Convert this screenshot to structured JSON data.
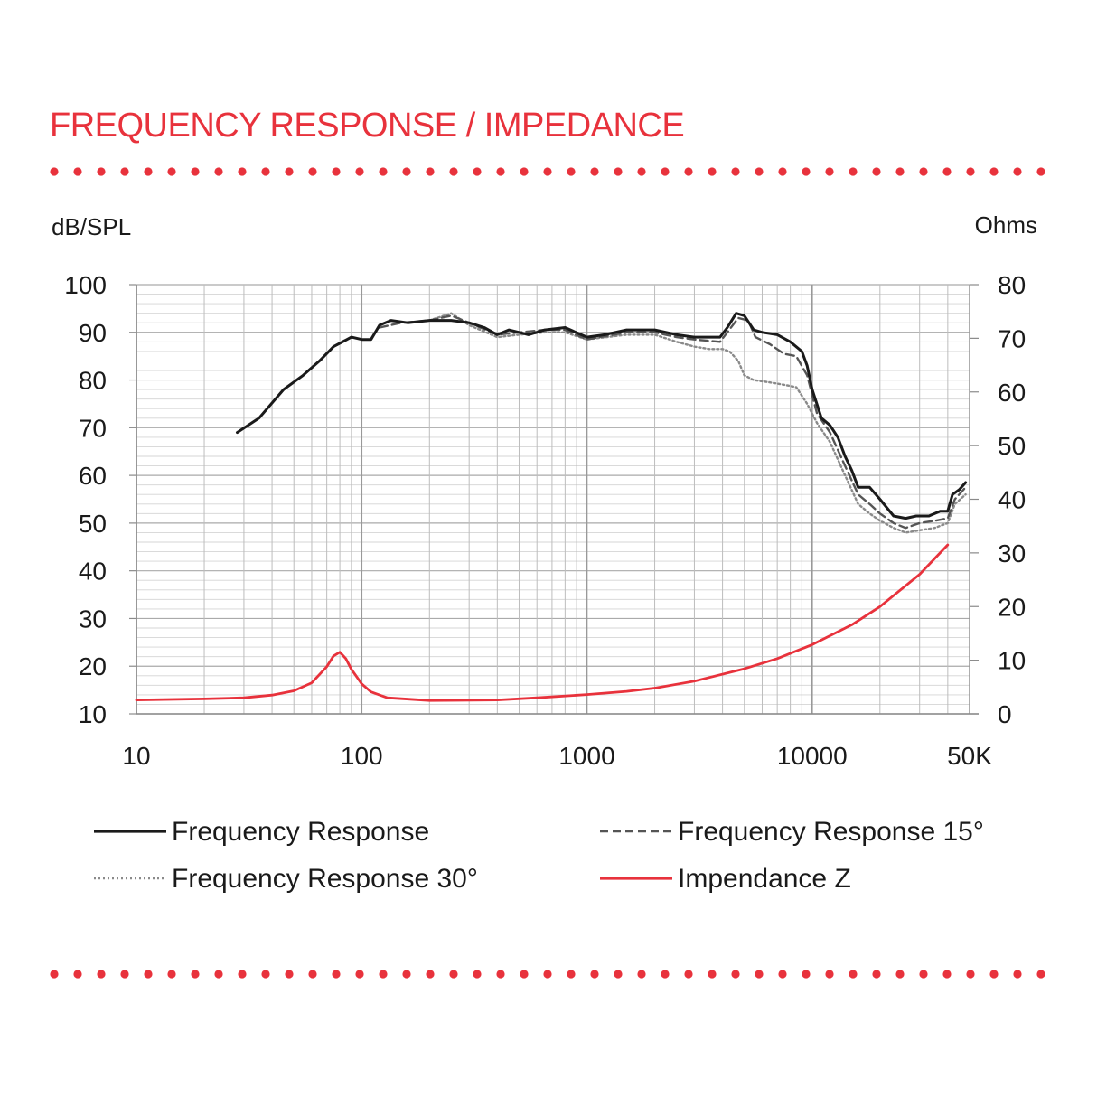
{
  "page": {
    "title": "FREQUENCY RESPONSE / IMPEDANCE"
  },
  "colors": {
    "accent": "#e8323c",
    "curve": "#1a1a1a",
    "grid": "#bdbdbd"
  },
  "chart_data": {
    "type": "line",
    "title": "",
    "xlabel": "",
    "ylabel": "dB/SPL",
    "y2label": "Ohms",
    "x_scale": "log",
    "xlim": [
      10,
      50000
    ],
    "ylim": [
      10,
      100
    ],
    "y2lim": [
      0,
      80
    ],
    "x_ticks": [
      10,
      100,
      1000,
      10000,
      50000
    ],
    "x_tick_labels": [
      "10",
      "100",
      "1000",
      "10000",
      "50K"
    ],
    "y_ticks": [
      100,
      90,
      80,
      70,
      60,
      50,
      40,
      30,
      20,
      10
    ],
    "y2_ticks": [
      80,
      70,
      60,
      50,
      40,
      30,
      20,
      10,
      0
    ],
    "grid": true,
    "legend": {
      "position": "bottom"
    },
    "series": [
      {
        "name": "Frequency Response",
        "axis": "left",
        "style": "solid",
        "color": "#1a1a1a",
        "points": [
          [
            28,
            69
          ],
          [
            35,
            72
          ],
          [
            45,
            78
          ],
          [
            55,
            81
          ],
          [
            65,
            84
          ],
          [
            75,
            87
          ],
          [
            90,
            89
          ],
          [
            100,
            88.5
          ],
          [
            110,
            88.5
          ],
          [
            120,
            91.5
          ],
          [
            135,
            92.5
          ],
          [
            160,
            92
          ],
          [
            200,
            92.5
          ],
          [
            250,
            92.5
          ],
          [
            300,
            92
          ],
          [
            350,
            91
          ],
          [
            400,
            89.5
          ],
          [
            450,
            90.5
          ],
          [
            500,
            90
          ],
          [
            550,
            89.5
          ],
          [
            650,
            90.5
          ],
          [
            800,
            91
          ],
          [
            1000,
            89
          ],
          [
            1200,
            89.5
          ],
          [
            1500,
            90.5
          ],
          [
            2000,
            90.5
          ],
          [
            2500,
            89.5
          ],
          [
            3000,
            89
          ],
          [
            3500,
            89
          ],
          [
            3900,
            89
          ],
          [
            4200,
            91
          ],
          [
            4600,
            94
          ],
          [
            5000,
            93.5
          ],
          [
            5500,
            90.5
          ],
          [
            6000,
            90
          ],
          [
            7000,
            89.5
          ],
          [
            8000,
            88
          ],
          [
            9000,
            86
          ],
          [
            9500,
            83
          ],
          [
            10000,
            78
          ],
          [
            11000,
            72
          ],
          [
            12000,
            70.5
          ],
          [
            13000,
            68
          ],
          [
            14000,
            64
          ],
          [
            15000,
            61
          ],
          [
            16000,
            57.5
          ],
          [
            18000,
            57.5
          ],
          [
            20000,
            55
          ],
          [
            23000,
            51.5
          ],
          [
            26000,
            51
          ],
          [
            29000,
            51.5
          ],
          [
            33000,
            51.5
          ],
          [
            37000,
            52.5
          ],
          [
            40000,
            52.5
          ],
          [
            42000,
            56
          ],
          [
            45000,
            57
          ],
          [
            48000,
            58.5
          ]
        ]
      },
      {
        "name": "Frequency Response 15°",
        "axis": "left",
        "style": "dashed",
        "color": "#555555",
        "points": [
          [
            120,
            91
          ],
          [
            150,
            92
          ],
          [
            200,
            92.5
          ],
          [
            250,
            93.5
          ],
          [
            300,
            92
          ],
          [
            400,
            89.5
          ],
          [
            500,
            90
          ],
          [
            650,
            90.5
          ],
          [
            800,
            90.5
          ],
          [
            1000,
            88.5
          ],
          [
            1500,
            90
          ],
          [
            2000,
            90
          ],
          [
            2500,
            89
          ],
          [
            3000,
            88.5
          ],
          [
            3900,
            88
          ],
          [
            4200,
            90
          ],
          [
            4700,
            93
          ],
          [
            5200,
            92.5
          ],
          [
            5600,
            89
          ],
          [
            6500,
            87.5
          ],
          [
            7500,
            85.5
          ],
          [
            8500,
            85
          ],
          [
            9500,
            81
          ],
          [
            10500,
            73
          ],
          [
            12000,
            69
          ],
          [
            14000,
            62
          ],
          [
            16000,
            56
          ],
          [
            18000,
            54
          ],
          [
            20000,
            52
          ],
          [
            23000,
            50
          ],
          [
            26000,
            49
          ],
          [
            30000,
            50
          ],
          [
            35000,
            50.5
          ],
          [
            40000,
            51
          ],
          [
            43000,
            55
          ],
          [
            48000,
            57.5
          ]
        ]
      },
      {
        "name": "Frequency Response 30°",
        "axis": "left",
        "style": "dotted",
        "color": "#8a8a8a",
        "points": [
          [
            200,
            92.5
          ],
          [
            250,
            94
          ],
          [
            300,
            91.5
          ],
          [
            400,
            89
          ],
          [
            500,
            89.5
          ],
          [
            650,
            90
          ],
          [
            800,
            90
          ],
          [
            1000,
            88.5
          ],
          [
            1500,
            89.5
          ],
          [
            2000,
            89.5
          ],
          [
            2500,
            88
          ],
          [
            3000,
            87
          ],
          [
            3500,
            86.5
          ],
          [
            4000,
            86.5
          ],
          [
            4300,
            86
          ],
          [
            4700,
            84
          ],
          [
            5000,
            81
          ],
          [
            5500,
            80
          ],
          [
            6500,
            79.5
          ],
          [
            7500,
            79
          ],
          [
            8500,
            78.5
          ],
          [
            9500,
            75
          ],
          [
            10500,
            71
          ],
          [
            12000,
            67
          ],
          [
            14000,
            60
          ],
          [
            16000,
            54
          ],
          [
            18000,
            52
          ],
          [
            20000,
            50.5
          ],
          [
            23000,
            49
          ],
          [
            26000,
            48
          ],
          [
            30000,
            48.5
          ],
          [
            35000,
            49
          ],
          [
            40000,
            50
          ],
          [
            43000,
            54
          ],
          [
            48000,
            56
          ]
        ]
      },
      {
        "name": "Impendance Z",
        "axis": "right",
        "style": "solid",
        "color": "#e8323c",
        "points": [
          [
            10,
            2.6
          ],
          [
            20,
            2.8
          ],
          [
            30,
            3
          ],
          [
            40,
            3.5
          ],
          [
            50,
            4.3
          ],
          [
            60,
            5.8
          ],
          [
            70,
            8.8
          ],
          [
            75,
            10.8
          ],
          [
            80,
            11.5
          ],
          [
            85,
            10.3
          ],
          [
            90,
            8.3
          ],
          [
            100,
            5.6
          ],
          [
            110,
            4.1
          ],
          [
            130,
            3
          ],
          [
            200,
            2.5
          ],
          [
            400,
            2.6
          ],
          [
            600,
            3
          ],
          [
            1000,
            3.6
          ],
          [
            1500,
            4.2
          ],
          [
            2000,
            4.8
          ],
          [
            3000,
            6.1
          ],
          [
            5000,
            8.4
          ],
          [
            7000,
            10.3
          ],
          [
            10000,
            12.9
          ],
          [
            15000,
            16.6
          ],
          [
            20000,
            20
          ],
          [
            30000,
            26
          ],
          [
            40000,
            31.5
          ]
        ]
      }
    ]
  }
}
